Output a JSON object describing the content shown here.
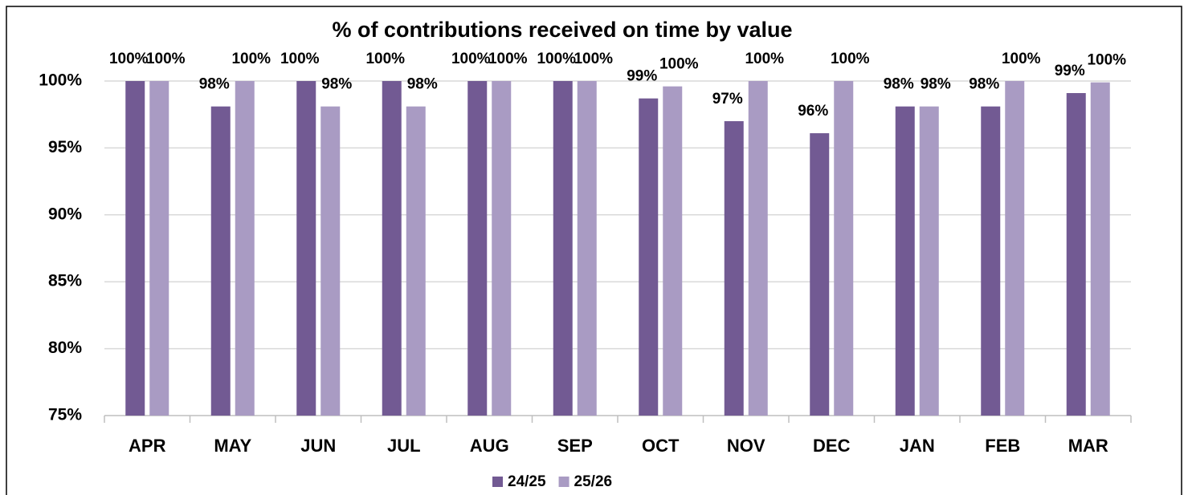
{
  "chart_data": {
    "type": "bar",
    "title": "% of contributions received on time by value",
    "categories": [
      "APR",
      "MAY",
      "JUN",
      "JUL",
      "AUG",
      "SEP",
      "OCT",
      "NOV",
      "DEC",
      "JAN",
      "FEB",
      "MAR"
    ],
    "series": [
      {
        "name": "24/25",
        "color": "#725a93",
        "values": [
          100,
          98.1,
          100,
          100,
          100,
          100,
          98.7,
          97.0,
          96.1,
          98.1,
          98.1,
          99.1
        ],
        "value_labels": [
          "100%",
          "98%",
          "100%",
          "100%",
          "100%",
          "100%",
          "99%",
          "97%",
          "96%",
          "98%",
          "98%",
          "99%"
        ]
      },
      {
        "name": "25/26",
        "color": "#a99bc3",
        "values": [
          100,
          100,
          98.1,
          98.1,
          100,
          100,
          99.6,
          100,
          100,
          98.1,
          100,
          99.9
        ],
        "value_labels": [
          "100%",
          "100%",
          "98%",
          "98%",
          "100%",
          "100%",
          "100%",
          "100%",
          "100%",
          "98%",
          "100%",
          "100%"
        ]
      }
    ],
    "ylim": [
      75,
      100
    ],
    "yticks": [
      {
        "value": 75,
        "label": "75%"
      },
      {
        "value": 80,
        "label": "80%"
      },
      {
        "value": 85,
        "label": "85%"
      },
      {
        "value": 90,
        "label": "90%"
      },
      {
        "value": 95,
        "label": "95%"
      },
      {
        "value": 100,
        "label": "100%"
      }
    ],
    "grid": true,
    "legend": "bottom"
  }
}
